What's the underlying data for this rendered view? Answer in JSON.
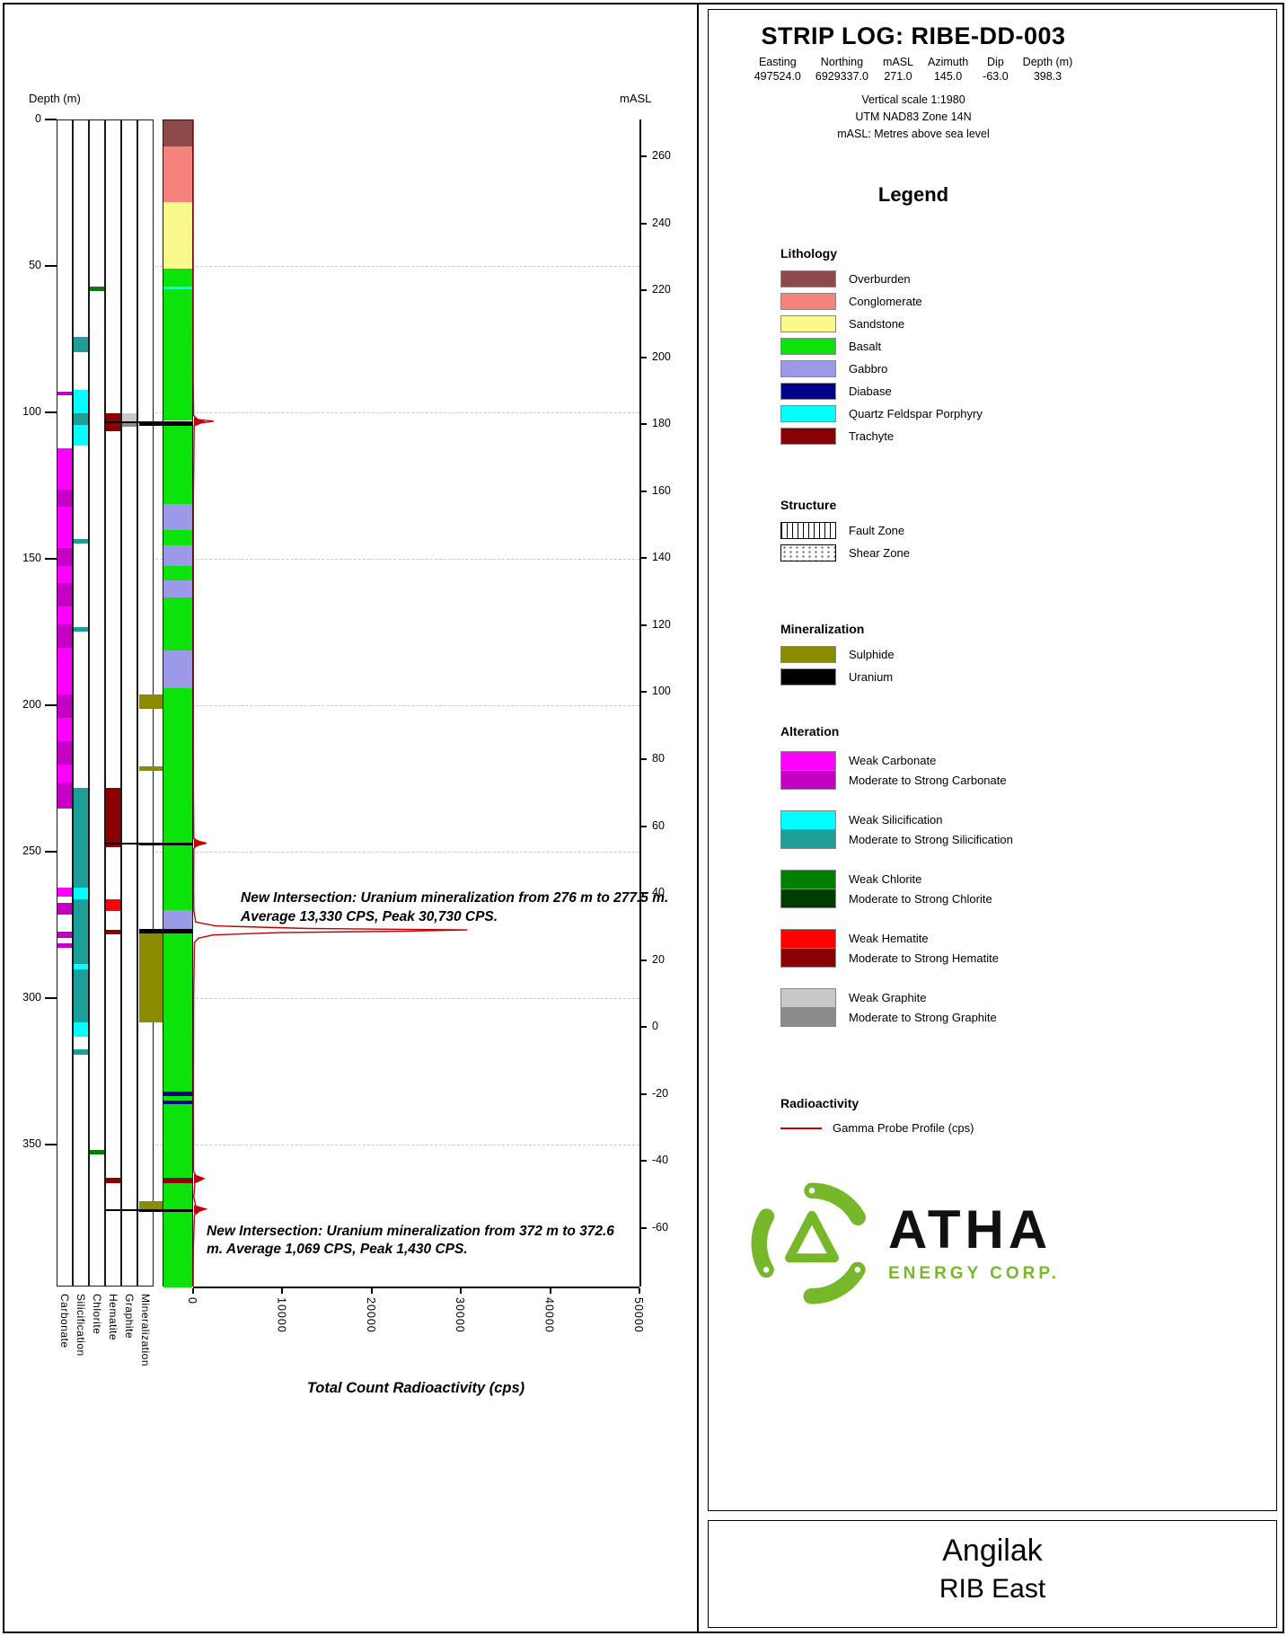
{
  "header": {
    "title": "STRIP LOG: RIBE-DD-003",
    "coords": [
      {
        "label": "Easting",
        "value": "497524.0"
      },
      {
        "label": "Northing",
        "value": "6929337.0"
      },
      {
        "label": "mASL",
        "value": "271.0"
      },
      {
        "label": "Azimuth",
        "value": "145.0"
      },
      {
        "label": "Dip",
        "value": "-63.0"
      },
      {
        "label": "Depth (m)",
        "value": "398.3"
      }
    ],
    "notes": [
      "Vertical scale 1:1980",
      "UTM NAD83 Zone 14N",
      "mASL: Metres above sea level"
    ]
  },
  "axes": {
    "depth_label": "Depth (m)",
    "depth_ticks": [
      0,
      50,
      100,
      150,
      200,
      250,
      300,
      350
    ],
    "masl_label": "mASL",
    "masl_ticks": [
      260,
      240,
      220,
      200,
      180,
      160,
      140,
      120,
      100,
      80,
      60,
      40,
      20,
      0,
      -20,
      -40,
      -60
    ],
    "x_ticks": [
      0,
      10000,
      20000,
      30000,
      40000,
      50000
    ],
    "x_title": "Total Count Radioactivity (cps)"
  },
  "tracks": {
    "labels": [
      "Carbonate",
      "Silicification",
      "Chlorite",
      "Hematite",
      "Graphite",
      "Mineralization"
    ]
  },
  "annotations": [
    {
      "text": "New Intersection: Uranium mineralization from 276 m to 277.5 m. Average 13,330 CPS, Peak 30,730 CPS."
    },
    {
      "text": "New Intersection: Uranium mineralization from 372 m to 372.6 m. Average 1,069 CPS, Peak 1,430 CPS."
    }
  ],
  "legend": {
    "title": "Legend",
    "lithology": {
      "heading": "Lithology",
      "items": [
        {
          "label": "Overburden",
          "color": "#8C4A4A"
        },
        {
          "label": "Conglomerate",
          "color": "#F5827B"
        },
        {
          "label": "Sandstone",
          "color": "#FCF98C"
        },
        {
          "label": "Basalt",
          "color": "#0BE30B"
        },
        {
          "label": "Gabbro",
          "color": "#9B99E8"
        },
        {
          "label": "Diabase",
          "color": "#00008B"
        },
        {
          "label": "Quartz Feldspar Porphyry",
          "color": "#00FFFF"
        },
        {
          "label": "Trachyte",
          "color": "#8B0000"
        }
      ]
    },
    "structure": {
      "heading": "Structure",
      "items": [
        {
          "label": "Fault Zone",
          "pattern": "fault"
        },
        {
          "label": "Shear Zone",
          "pattern": "shear"
        }
      ]
    },
    "mineralization": {
      "heading": "Mineralization",
      "items": [
        {
          "label": "Sulphide",
          "color": "#8B8B00"
        },
        {
          "label": "Uranium",
          "color": "#000000"
        }
      ]
    },
    "alteration": {
      "heading": "Alteration",
      "pairs": [
        {
          "weak_label": "Weak Carbonate",
          "weak_color": "#FF00FF",
          "strong_label": "Moderate to Strong Carbonate",
          "strong_color": "#C400C4"
        },
        {
          "weak_label": "Weak Silicification",
          "weak_color": "#00FFFF",
          "strong_label": "Moderate to Strong Silicification",
          "strong_color": "#1E9E98"
        },
        {
          "weak_label": "Weak Chlorite",
          "weak_color": "#007F00",
          "strong_label": "Moderate to Strong Chlorite",
          "strong_color": "#013D01"
        },
        {
          "weak_label": "Weak Hematite",
          "weak_color": "#FF0000",
          "strong_label": "Moderate to Strong Hematite",
          "strong_color": "#8B0000"
        },
        {
          "weak_label": "Weak Graphite",
          "weak_color": "#C9C9C9",
          "strong_label": "Moderate to Strong Graphite",
          "strong_color": "#8A8A8A"
        }
      ]
    },
    "radioactivity": {
      "heading": "Radioactivity",
      "item_label": "Gamma Probe Profile (cps)",
      "line_color": "#C00000"
    }
  },
  "footer": {
    "project": "Angilak",
    "area": "RIB East"
  },
  "logo": {
    "name": "ATHA",
    "sub": "ENERGY CORP.",
    "green": "#76B82A"
  },
  "colors": {
    "gamma": "#C00000",
    "unit_colors": {
      "Overburden": "#8C4A4A",
      "Conglomerate": "#F5827B",
      "Sandstone": "#FCF98C",
      "Basalt": "#0BE30B",
      "Gabbro": "#9B99E8",
      "Diabase": "#00008B",
      "Quartz Feldspar Porphyry": "#00FFFF",
      "Trachyte": "#8B0000",
      "Uranium": "#000000",
      "Sulphide": "#8B8B00"
    },
    "grade_colors": {
      "carbonate": {
        "weak": "#FF00FF",
        "strong": "#C400C4"
      },
      "silicification": {
        "weak": "#00FFFF",
        "strong": "#1E9E98"
      },
      "chlorite": {
        "weak": "#007F00",
        "strong": "#013D01"
      },
      "hematite": {
        "weak": "#FF0000",
        "strong": "#8B0000"
      },
      "graphite": {
        "weak": "#C9C9C9",
        "strong": "#8A8A8A"
      }
    }
  },
  "chart_data": {
    "type": "strip-log",
    "depth_range_m": [
      0,
      398.3
    ],
    "vertical_scale": "1:1980",
    "collar": {
      "easting": 497524.0,
      "northing": 6929337.0,
      "masl": 271.0,
      "azimuth": 145.0,
      "dip": -63.0,
      "total_depth_m": 398.3
    },
    "lithology_intervals": [
      {
        "from": 0,
        "to": 9,
        "unit": "Overburden"
      },
      {
        "from": 9,
        "to": 28,
        "unit": "Conglomerate"
      },
      {
        "from": 28,
        "to": 50.5,
        "unit": "Sandstone"
      },
      {
        "from": 50.5,
        "to": 56.8,
        "unit": "Basalt"
      },
      {
        "from": 56.8,
        "to": 57.8,
        "unit": "Quartz Feldspar Porphyry"
      },
      {
        "from": 57.8,
        "to": 75,
        "unit": "Basalt"
      },
      {
        "from": 75,
        "to": 82,
        "unit": "Basalt",
        "texture": "shear"
      },
      {
        "from": 82,
        "to": 88,
        "unit": "Basalt"
      },
      {
        "from": 88,
        "to": 95,
        "unit": "Basalt",
        "texture": "fault"
      },
      {
        "from": 95,
        "to": 102.6,
        "unit": "Basalt"
      },
      {
        "from": 102.6,
        "to": 104.2,
        "unit": "Uranium"
      },
      {
        "from": 104.2,
        "to": 118,
        "unit": "Basalt",
        "texture": "shear"
      },
      {
        "from": 118,
        "to": 128,
        "unit": "Basalt"
      },
      {
        "from": 128,
        "to": 131,
        "unit": "Basalt",
        "texture": "shear"
      },
      {
        "from": 131,
        "to": 140,
        "unit": "Gabbro"
      },
      {
        "from": 140,
        "to": 145,
        "unit": "Basalt",
        "texture": "shear"
      },
      {
        "from": 145,
        "to": 152,
        "unit": "Gabbro"
      },
      {
        "from": 152,
        "to": 157,
        "unit": "Basalt",
        "texture": "shear"
      },
      {
        "from": 157,
        "to": 163,
        "unit": "Gabbro"
      },
      {
        "from": 163,
        "to": 166,
        "unit": "Basalt",
        "texture": "shear"
      },
      {
        "from": 166,
        "to": 170,
        "unit": "Basalt"
      },
      {
        "from": 170,
        "to": 176,
        "unit": "Basalt",
        "texture": "shear"
      },
      {
        "from": 176,
        "to": 181,
        "unit": "Basalt"
      },
      {
        "from": 181,
        "to": 194,
        "unit": "Gabbro"
      },
      {
        "from": 194,
        "to": 200,
        "unit": "Basalt"
      },
      {
        "from": 200,
        "to": 212,
        "unit": "Basalt",
        "texture": "shear"
      },
      {
        "from": 212,
        "to": 215,
        "unit": "Basalt"
      },
      {
        "from": 215,
        "to": 223,
        "unit": "Basalt",
        "texture": "shear"
      },
      {
        "from": 223,
        "to": 228,
        "unit": "Basalt"
      },
      {
        "from": 228,
        "to": 236,
        "unit": "Basalt",
        "texture": "shear"
      },
      {
        "from": 236,
        "to": 246.5,
        "unit": "Basalt"
      },
      {
        "from": 246.5,
        "to": 247.6,
        "unit": "Uranium"
      },
      {
        "from": 247.6,
        "to": 250,
        "unit": "Basalt"
      },
      {
        "from": 250,
        "to": 260,
        "unit": "Basalt",
        "texture": "shear"
      },
      {
        "from": 260,
        "to": 269.5,
        "unit": "Basalt"
      },
      {
        "from": 269.5,
        "to": 276,
        "unit": "Gabbro"
      },
      {
        "from": 276,
        "to": 277.5,
        "unit": "Uranium"
      },
      {
        "from": 277.5,
        "to": 308,
        "unit": "Basalt",
        "texture": "shear-dense"
      },
      {
        "from": 308,
        "to": 331.5,
        "unit": "Basalt"
      },
      {
        "from": 331.5,
        "to": 333,
        "unit": "Diabase"
      },
      {
        "from": 333,
        "to": 334.5,
        "unit": "Basalt"
      },
      {
        "from": 334.5,
        "to": 336,
        "unit": "Diabase"
      },
      {
        "from": 336,
        "to": 361,
        "unit": "Basalt"
      },
      {
        "from": 361,
        "to": 363,
        "unit": "Trachyte"
      },
      {
        "from": 363,
        "to": 370,
        "unit": "Basalt"
      },
      {
        "from": 370,
        "to": 372,
        "unit": "Basalt",
        "texture": "shear"
      },
      {
        "from": 372,
        "to": 372.8,
        "unit": "Uranium"
      },
      {
        "from": 372.8,
        "to": 398.3,
        "unit": "Basalt"
      }
    ],
    "alteration_tracks": {
      "carbonate": [
        {
          "from": 92.5,
          "to": 93.8,
          "grade": "strong"
        },
        {
          "from": 112,
          "to": 126,
          "grade": "weak"
        },
        {
          "from": 126,
          "to": 132,
          "grade": "strong"
        },
        {
          "from": 132,
          "to": 146,
          "grade": "weak"
        },
        {
          "from": 146,
          "to": 152,
          "grade": "strong"
        },
        {
          "from": 152,
          "to": 158,
          "grade": "weak"
        },
        {
          "from": 158,
          "to": 166,
          "grade": "strong"
        },
        {
          "from": 166,
          "to": 172,
          "grade": "weak"
        },
        {
          "from": 172,
          "to": 180,
          "grade": "strong"
        },
        {
          "from": 180,
          "to": 196,
          "grade": "weak"
        },
        {
          "from": 196,
          "to": 204,
          "grade": "strong"
        },
        {
          "from": 204,
          "to": 212,
          "grade": "weak"
        },
        {
          "from": 212,
          "to": 220,
          "grade": "strong"
        },
        {
          "from": 220,
          "to": 226,
          "grade": "weak"
        },
        {
          "from": 226,
          "to": 235,
          "grade": "strong"
        },
        {
          "from": 262,
          "to": 265,
          "grade": "weak"
        },
        {
          "from": 267,
          "to": 271,
          "grade": "strong"
        },
        {
          "from": 277,
          "to": 279,
          "grade": "strong"
        },
        {
          "from": 281,
          "to": 282.5,
          "grade": "strong"
        }
      ],
      "silicification": [
        {
          "from": 74,
          "to": 79,
          "grade": "strong"
        },
        {
          "from": 92,
          "to": 100,
          "grade": "weak"
        },
        {
          "from": 100,
          "to": 104,
          "grade": "strong"
        },
        {
          "from": 104,
          "to": 111,
          "grade": "weak"
        },
        {
          "from": 143,
          "to": 144.5,
          "grade": "strong"
        },
        {
          "from": 173,
          "to": 174.5,
          "grade": "strong"
        },
        {
          "from": 228,
          "to": 262,
          "grade": "strong"
        },
        {
          "from": 262,
          "to": 266,
          "grade": "weak"
        },
        {
          "from": 266,
          "to": 288,
          "grade": "strong"
        },
        {
          "from": 288,
          "to": 290,
          "grade": "weak"
        },
        {
          "from": 290,
          "to": 308,
          "grade": "strong"
        },
        {
          "from": 308,
          "to": 313,
          "grade": "weak"
        },
        {
          "from": 317,
          "to": 319,
          "grade": "strong"
        }
      ],
      "chlorite": [
        {
          "from": 56.8,
          "to": 58.2,
          "grade": "weak"
        },
        {
          "from": 351.5,
          "to": 353,
          "grade": "weak"
        }
      ],
      "hematite": [
        {
          "from": 100,
          "to": 106,
          "grade": "strong"
        },
        {
          "from": 228,
          "to": 248,
          "grade": "strong"
        },
        {
          "from": 266,
          "to": 270,
          "grade": "weak"
        },
        {
          "from": 276.5,
          "to": 278,
          "grade": "strong"
        },
        {
          "from": 361,
          "to": 363,
          "grade": "strong"
        }
      ],
      "graphite": [
        {
          "from": 100,
          "to": 103,
          "grade": "weak"
        },
        {
          "from": 103,
          "to": 104.5,
          "grade": "strong"
        }
      ]
    },
    "mineralization_intervals": [
      {
        "from": 196,
        "to": 201,
        "mineral": "Sulphide"
      },
      {
        "from": 220.5,
        "to": 222,
        "mineral": "Sulphide"
      },
      {
        "from": 277.5,
        "to": 308,
        "mineral": "Sulphide"
      },
      {
        "from": 369,
        "to": 372,
        "mineral": "Sulphide"
      },
      {
        "from": 102.6,
        "to": 104.2,
        "mineral": "Uranium"
      },
      {
        "from": 246.5,
        "to": 247.6,
        "mineral": "Uranium"
      },
      {
        "from": 276,
        "to": 277.5,
        "mineral": "Uranium"
      },
      {
        "from": 371.8,
        "to": 372.8,
        "mineral": "Uranium"
      }
    ],
    "marker_lines_m": [
      103.4,
      247.1,
      372.3
    ],
    "intersection_markers_m": [
      103.2,
      247.1,
      361.6,
      372.1
    ],
    "gamma_profile": {
      "units": "cps",
      "x_range": [
        0,
        50000
      ],
      "points": [
        [
          0,
          15
        ],
        [
          40,
          15
        ],
        [
          90,
          25
        ],
        [
          101,
          60
        ],
        [
          102.4,
          500
        ],
        [
          103,
          2300
        ],
        [
          103.6,
          900
        ],
        [
          104.5,
          120
        ],
        [
          130,
          35
        ],
        [
          180,
          35
        ],
        [
          230,
          45
        ],
        [
          245.5,
          80
        ],
        [
          246.4,
          600
        ],
        [
          247.1,
          1500
        ],
        [
          247.9,
          350
        ],
        [
          249,
          80
        ],
        [
          262,
          60
        ],
        [
          270,
          80
        ],
        [
          274,
          300
        ],
        [
          275.3,
          2500
        ],
        [
          276.2,
          13000
        ],
        [
          276.7,
          30730
        ],
        [
          277.1,
          24000
        ],
        [
          277.6,
          9500
        ],
        [
          278.4,
          2200
        ],
        [
          279.5,
          600
        ],
        [
          281,
          150
        ],
        [
          300,
          60
        ],
        [
          330,
          40
        ],
        [
          359,
          50
        ],
        [
          361.2,
          400
        ],
        [
          362,
          950
        ],
        [
          363,
          200
        ],
        [
          368,
          80
        ],
        [
          371,
          300
        ],
        [
          372,
          1430
        ],
        [
          372.7,
          700
        ],
        [
          374,
          150
        ],
        [
          385,
          30
        ],
        [
          398.3,
          15
        ]
      ]
    },
    "intersections": [
      {
        "from_m": 276,
        "to_m": 277.5,
        "avg_cps": 13330,
        "peak_cps": 30730
      },
      {
        "from_m": 372,
        "to_m": 372.6,
        "avg_cps": 1069,
        "peak_cps": 1430
      }
    ]
  }
}
